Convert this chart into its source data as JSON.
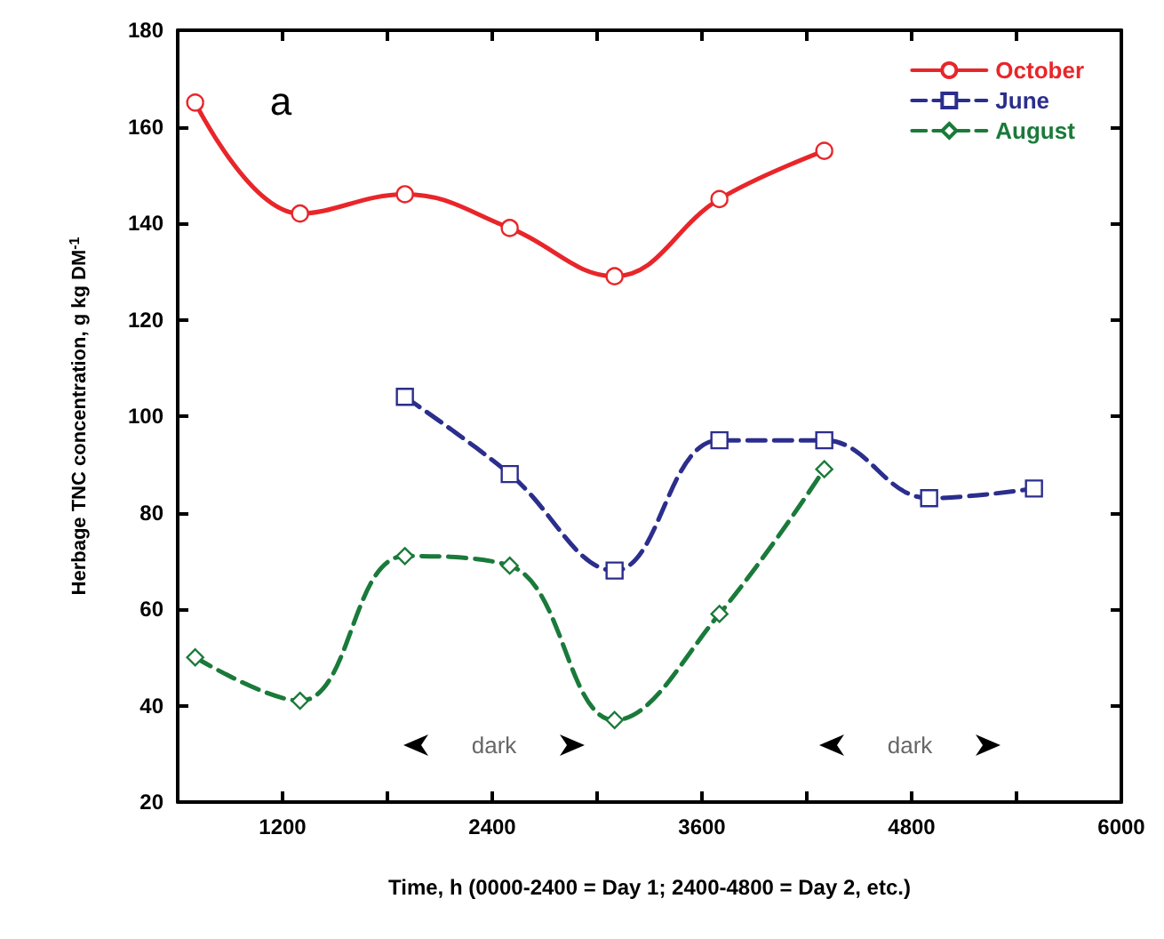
{
  "chart_data": {
    "type": "line",
    "xlabel": "Time, h (0000-2400 = Day 1; 2400-4800 = Day 2, etc.)",
    "ylabel": "Herbage TNC concentration, g kg DM$^{-1}$",
    "xlim": [
      600,
      6000
    ],
    "xticks": [
      {
        "value": 1200,
        "label": "1200"
      },
      {
        "value": 1800,
        "label": null
      },
      {
        "value": 2400,
        "label": "2400"
      },
      {
        "value": 3000,
        "label": null
      },
      {
        "value": 3600,
        "label": "3600"
      },
      {
        "value": 4200,
        "label": null
      },
      {
        "value": 4800,
        "label": "4800"
      },
      {
        "value": 5400,
        "label": null
      },
      {
        "value": 6000,
        "label": "6000"
      }
    ],
    "ylim": [
      20,
      180
    ],
    "yticks": [
      20,
      40,
      60,
      80,
      100,
      120,
      140,
      160,
      180
    ],
    "grid": false,
    "legend": "top right",
    "series": [
      {
        "name": "October",
        "color": "#e8262a",
        "marker": "circle",
        "line_style": "solid",
        "x": [
          700,
          1300,
          1900,
          2500,
          3100,
          3700,
          4300
        ],
        "values": [
          165,
          142,
          146,
          139,
          129,
          145,
          155
        ]
      },
      {
        "name": "June",
        "color": "#2b2e8c",
        "marker": "square",
        "line_style": "dashed",
        "x": [
          1900,
          2500,
          3100,
          3700,
          4300,
          4900,
          5500
        ],
        "values": [
          104,
          88,
          68,
          95,
          95,
          83,
          85
        ]
      },
      {
        "name": "August",
        "color": "#1a7a3a",
        "marker": "diamond",
        "line_style": "dashed",
        "x": [
          700,
          1300,
          1900,
          2500,
          3100,
          3700,
          4300
        ],
        "values": [
          50,
          41,
          71,
          69,
          37,
          59,
          89
        ]
      }
    ],
    "annotations": [
      "a",
      "dark",
      "dark"
    ]
  }
}
